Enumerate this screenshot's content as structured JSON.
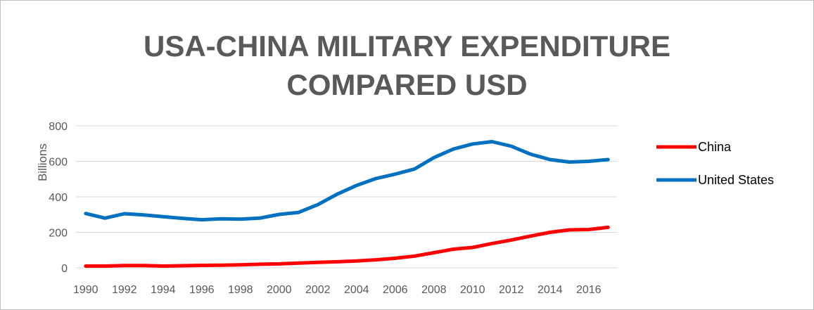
{
  "chart_data": {
    "type": "line",
    "title_lines": [
      "USA-CHINA MILITARY EXPENDITURE",
      "COMPARED USD"
    ],
    "xlabel": "",
    "ylabel": "Billions",
    "ylim": [
      0,
      800
    ],
    "yticks": [
      "0",
      "200",
      "400",
      "600",
      "800"
    ],
    "xtick_labels": [
      "1990",
      "1992",
      "1994",
      "1996",
      "1998",
      "2000",
      "2002",
      "2004",
      "2006",
      "2008",
      "2010",
      "2012",
      "2014",
      "2016"
    ],
    "x": [
      1990,
      1991,
      1992,
      1993,
      1994,
      1995,
      1996,
      1997,
      1998,
      1999,
      2000,
      2001,
      2002,
      2003,
      2004,
      2005,
      2006,
      2007,
      2008,
      2009,
      2010,
      2011,
      2012,
      2013,
      2014,
      2015,
      2016,
      2017
    ],
    "grid": true,
    "legend_position": "right",
    "series": [
      {
        "name": "China",
        "color": "#ff0000",
        "values": [
          10,
          10,
          13,
          13,
          10,
          12,
          14,
          15,
          17,
          20,
          22,
          27,
          31,
          34,
          39,
          45,
          54,
          66,
          85,
          105,
          115,
          137,
          157,
          179,
          200,
          214,
          216,
          228
        ]
      },
      {
        "name": "United States",
        "color": "#0070c0",
        "values": [
          306,
          280,
          305,
          298,
          288,
          279,
          271,
          276,
          274,
          280,
          301,
          312,
          356,
          415,
          464,
          503,
          528,
          557,
          621,
          669,
          698,
          711,
          685,
          640,
          610,
          596,
          600,
          610
        ]
      }
    ]
  }
}
